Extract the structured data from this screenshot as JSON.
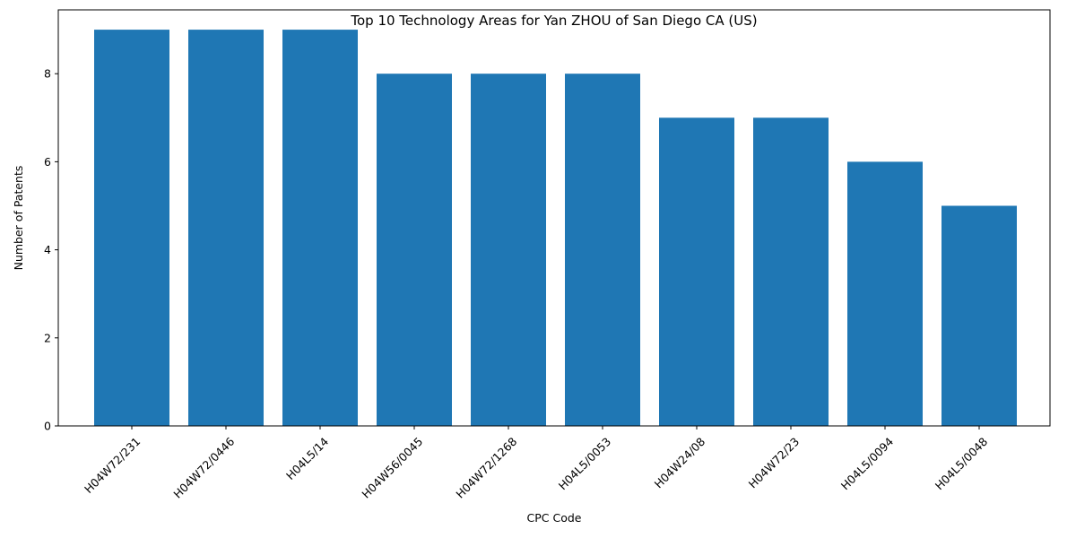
{
  "chart_data": {
    "type": "bar",
    "title": "Top 10 Technology Areas for Yan ZHOU of San Diego CA (US)",
    "xlabel": "CPC Code",
    "ylabel": "Number of Patents",
    "categories": [
      "H04W72/231",
      "H04W72/0446",
      "H04L5/14",
      "H04W56/0045",
      "H04W72/1268",
      "H04L5/0053",
      "H04W24/08",
      "H04W72/23",
      "H04L5/0094",
      "H04L5/0048"
    ],
    "values": [
      9,
      9,
      9,
      8,
      8,
      8,
      7,
      7,
      6,
      5
    ],
    "ylim": [
      0,
      9.45
    ],
    "yticks": [
      0,
      2,
      4,
      6,
      8
    ],
    "grid": false,
    "bar_color": "#1f77b4"
  }
}
